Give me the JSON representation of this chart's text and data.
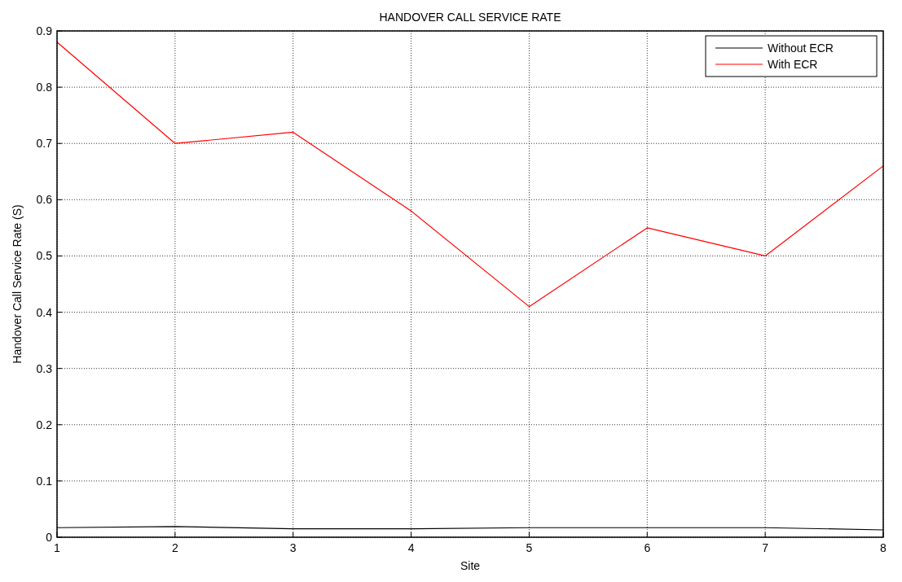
{
  "chart_data": {
    "type": "line",
    "title": "HANDOVER CALL SERVICE RATE",
    "xlabel": "Site",
    "ylabel": "Handover Call Service Rate  (S)",
    "x": [
      1,
      2,
      3,
      4,
      5,
      6,
      7,
      8
    ],
    "series": [
      {
        "name": "Without ECR",
        "color": "#000000",
        "values": [
          0.017,
          0.019,
          0.015,
          0.015,
          0.017,
          0.017,
          0.017,
          0.013
        ]
      },
      {
        "name": "With ECR",
        "color": "#ff0000",
        "values": [
          0.88,
          0.7,
          0.72,
          0.58,
          0.41,
          0.55,
          0.5,
          0.66
        ]
      }
    ],
    "xlim": [
      1,
      8
    ],
    "xticks": [
      1,
      2,
      3,
      4,
      5,
      6,
      7,
      8
    ],
    "ylim": [
      0,
      0.9
    ],
    "yticks": [
      0,
      0.1,
      0.2,
      0.3,
      0.4,
      0.5,
      0.6,
      0.7,
      0.8,
      0.9
    ],
    "grid": true,
    "legend": "top right",
    "line_style": "solid",
    "marker": "none"
  }
}
